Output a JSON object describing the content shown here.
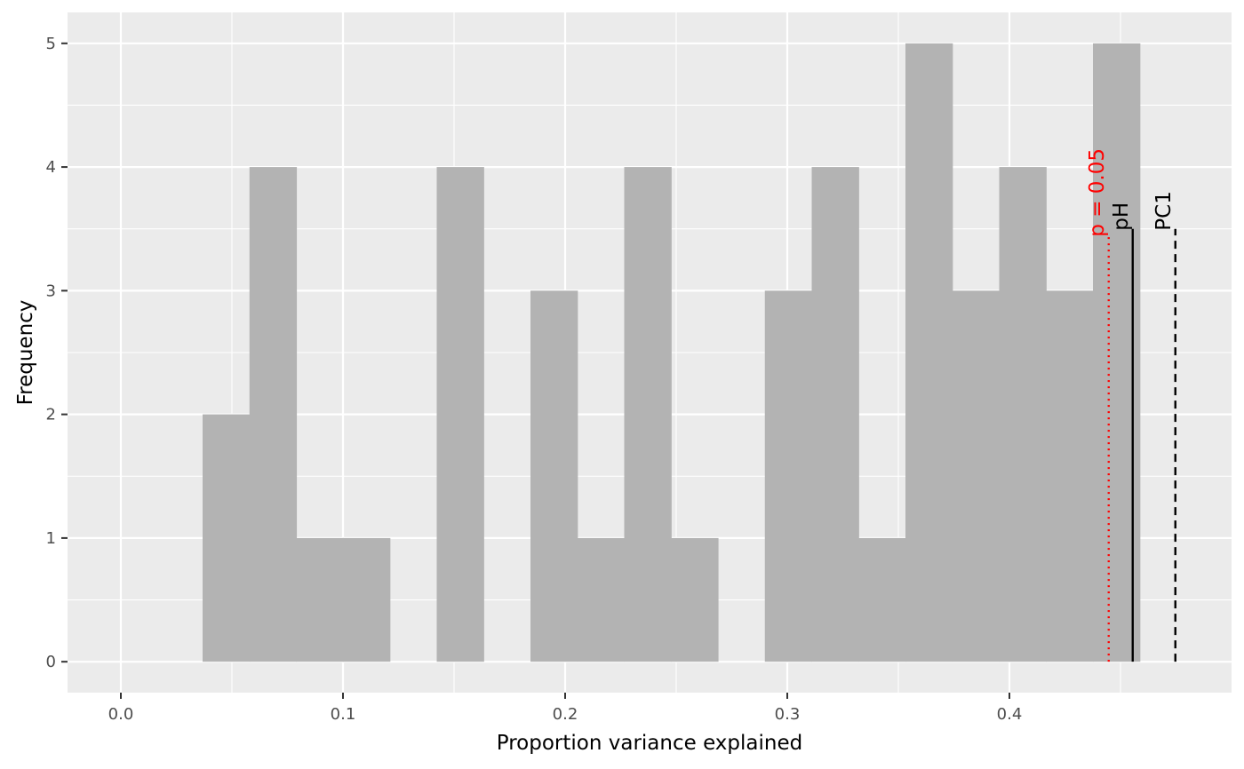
{
  "chart_data": {
    "type": "histogram",
    "title": "",
    "xlabel": "Proportion variance explained",
    "ylabel": "Frequency",
    "xlim": [
      -0.024,
      0.5
    ],
    "ylim": [
      -0.25,
      5.25
    ],
    "xticks": [
      "0.0",
      "0.1",
      "0.2",
      "0.3",
      "0.4"
    ],
    "yticks": [
      "0",
      "1",
      "2",
      "3",
      "4",
      "5"
    ],
    "grid": true,
    "bar_color": "#b3b3b3",
    "panel_color": "#ebebeb",
    "bins": [
      {
        "x0": 0.0368,
        "x1": 0.0579,
        "count": 2
      },
      {
        "x0": 0.0579,
        "x1": 0.079,
        "count": 4
      },
      {
        "x0": 0.079,
        "x1": 0.1,
        "count": 1
      },
      {
        "x0": 0.1,
        "x1": 0.1211,
        "count": 1
      },
      {
        "x0": 0.1422,
        "x1": 0.1633,
        "count": 4
      },
      {
        "x0": 0.1844,
        "x1": 0.2055,
        "count": 3
      },
      {
        "x0": 0.2055,
        "x1": 0.2266,
        "count": 1
      },
      {
        "x0": 0.2266,
        "x1": 0.2477,
        "count": 4
      },
      {
        "x0": 0.2477,
        "x1": 0.2688,
        "count": 1
      },
      {
        "x0": 0.2899,
        "x1": 0.311,
        "count": 3
      },
      {
        "x0": 0.311,
        "x1": 0.3321,
        "count": 4
      },
      {
        "x0": 0.3321,
        "x1": 0.3532,
        "count": 1
      },
      {
        "x0": 0.3532,
        "x1": 0.3743,
        "count": 5
      },
      {
        "x0": 0.3743,
        "x1": 0.3954,
        "count": 3
      },
      {
        "x0": 0.3954,
        "x1": 0.4165,
        "count": 4
      },
      {
        "x0": 0.4165,
        "x1": 0.4376,
        "count": 3
      },
      {
        "x0": 0.4376,
        "x1": 0.4587,
        "count": 5
      }
    ],
    "reference_lines": [
      {
        "label": "p = 0.05",
        "x": 0.4447,
        "y_top": 3.45,
        "style": "dotted",
        "color": "#ff0000"
      },
      {
        "label": "pH",
        "x": 0.4555,
        "y_top": 3.5,
        "style": "solid",
        "color": "#000000"
      },
      {
        "label": "PC1",
        "x": 0.4747,
        "y_top": 3.5,
        "style": "dashed",
        "color": "#000000"
      }
    ]
  }
}
